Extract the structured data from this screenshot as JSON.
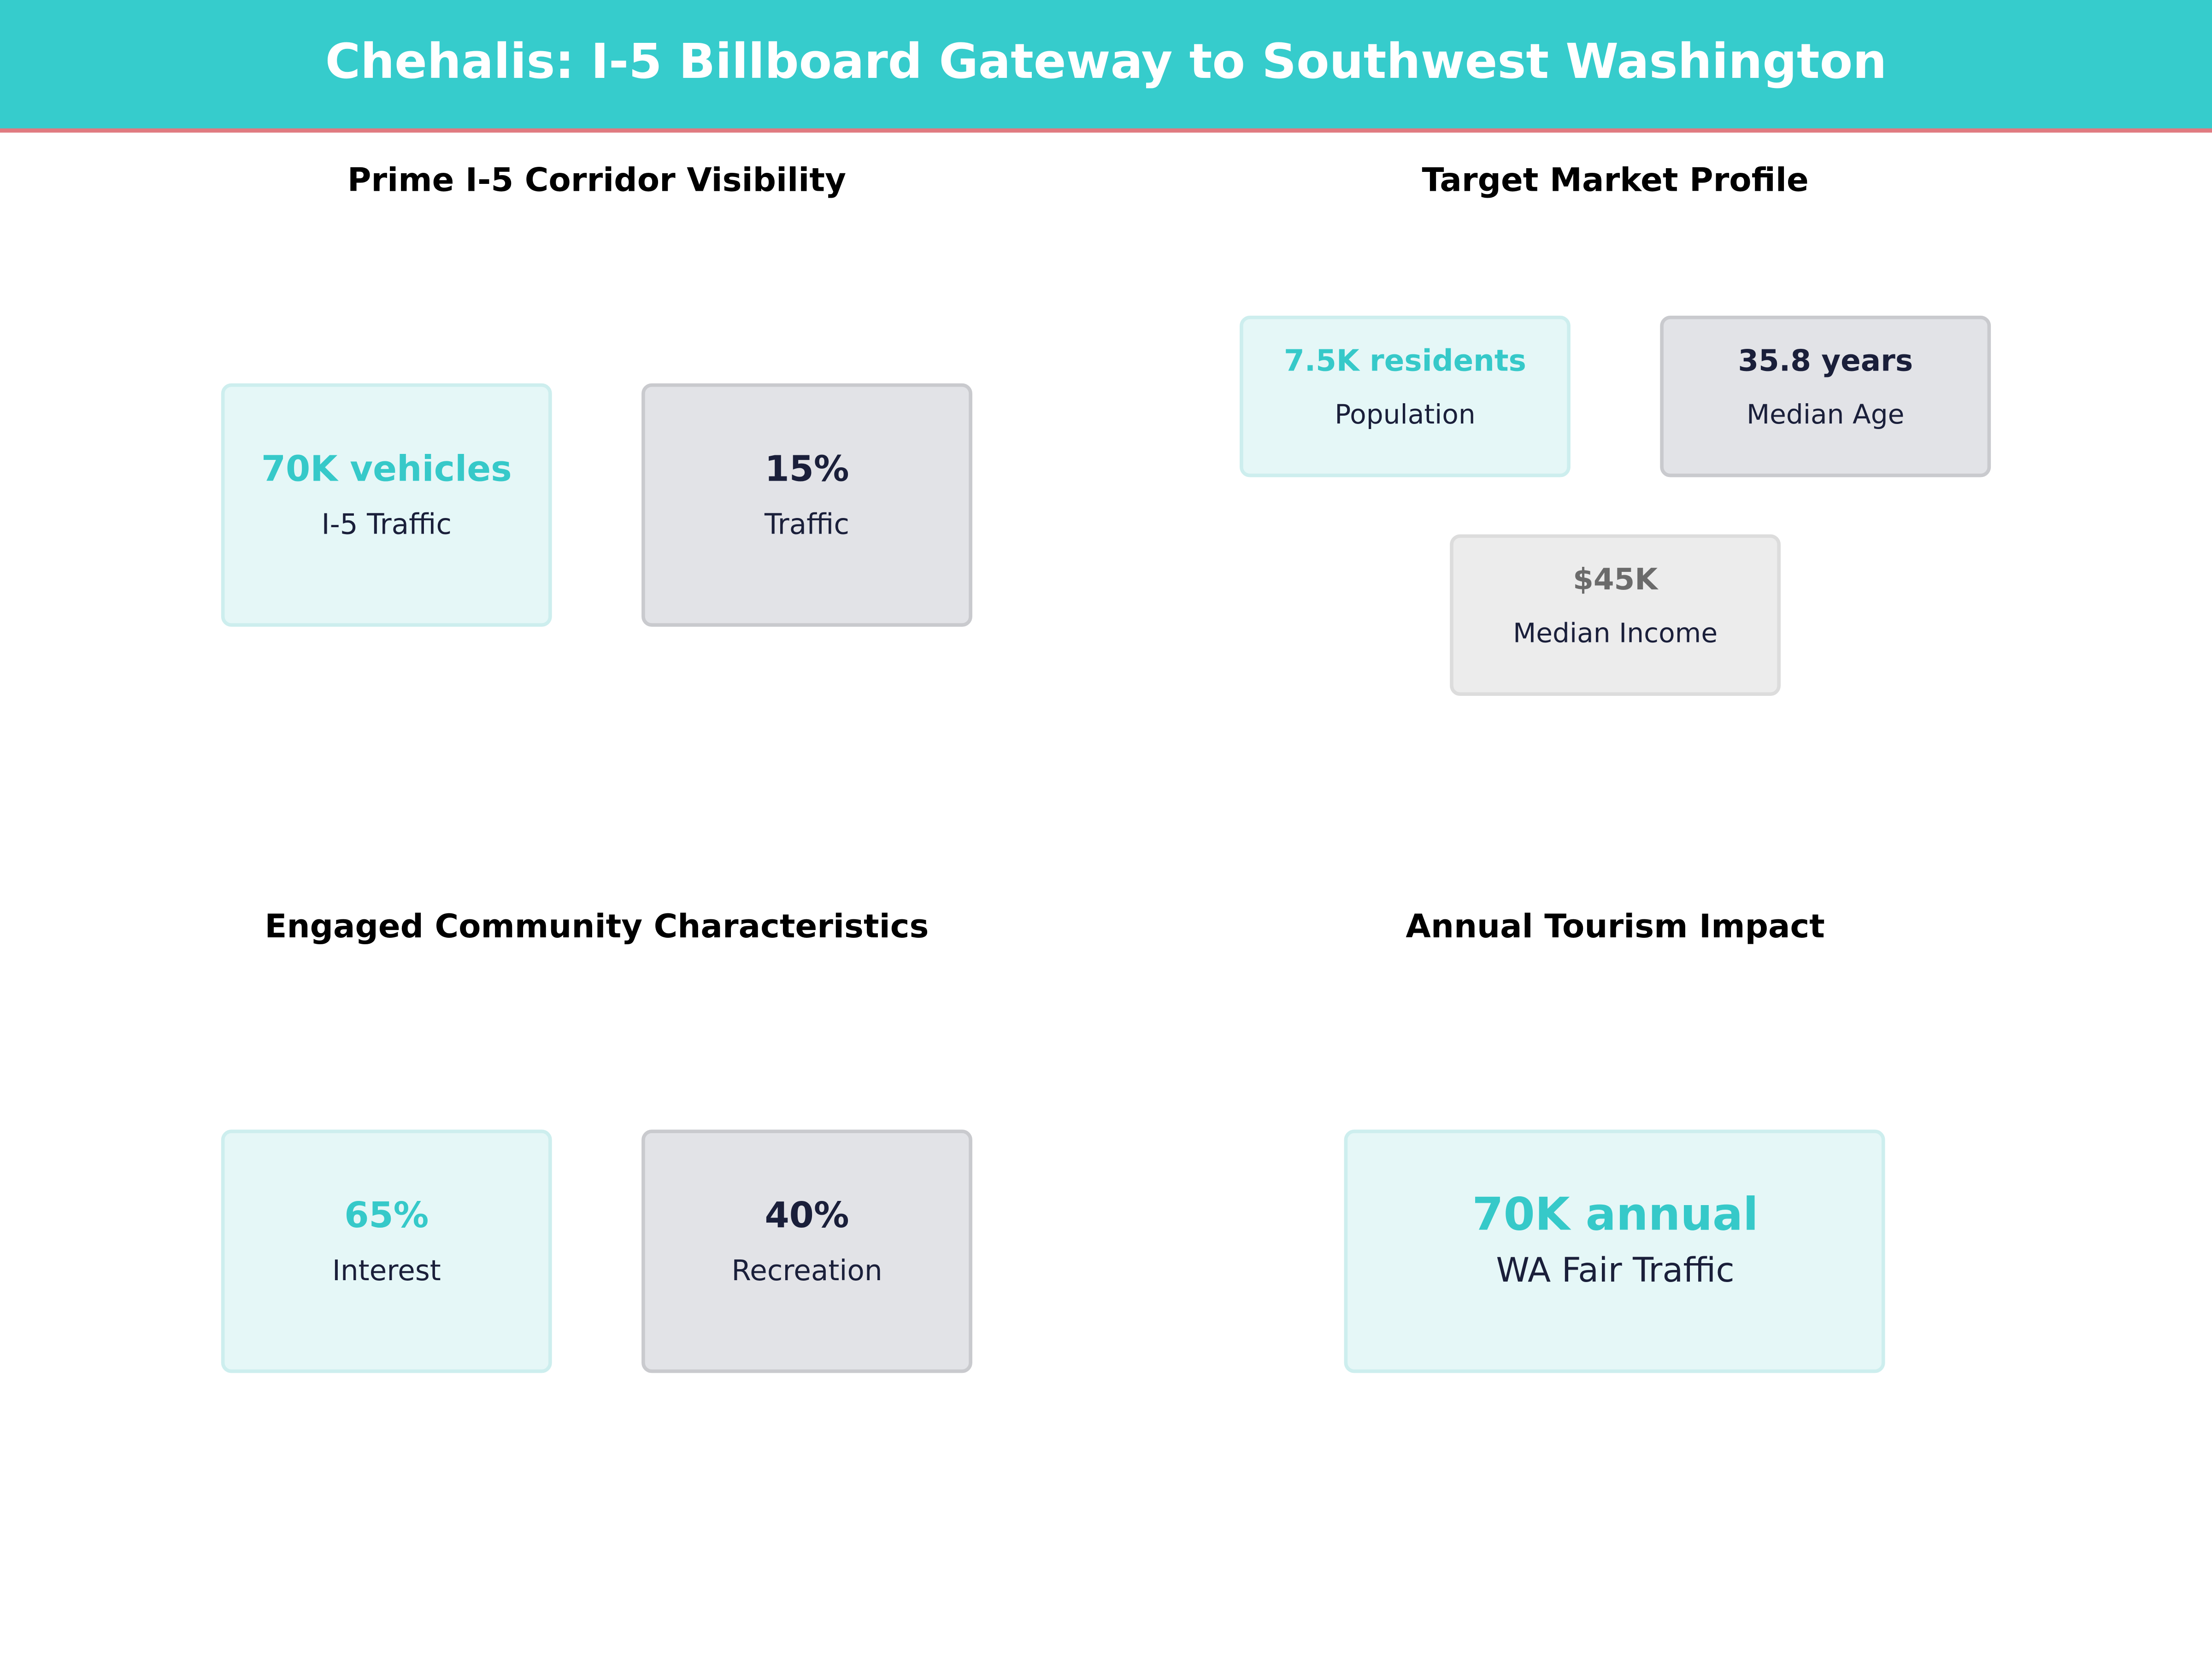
{
  "header": {
    "title": "Chehalis: I-5 Billboard Gateway to Southwest Washington"
  },
  "panels": [
    {
      "title": "Prime I-5 Corridor Visibility",
      "cards": [
        {
          "value": "70K vehicles",
          "label": "I-5 Traffic"
        },
        {
          "value": "15%",
          "label": "Traffic"
        }
      ]
    },
    {
      "title": "Target Market Profile",
      "cards": [
        {
          "value": "7.5K residents",
          "label": "Population"
        },
        {
          "value": "35.8 years",
          "label": "Median Age"
        },
        {
          "value": "$45K",
          "label": "Median Income"
        }
      ]
    },
    {
      "title": "Engaged Community Characteristics",
      "cards": [
        {
          "value": "65%",
          "label": "Interest"
        },
        {
          "value": "40%",
          "label": "Recreation"
        }
      ]
    },
    {
      "title": "Annual Tourism Impact",
      "cards": [
        {
          "value": "70K annual",
          "label": "WA Fair Traffic"
        }
      ]
    }
  ]
}
